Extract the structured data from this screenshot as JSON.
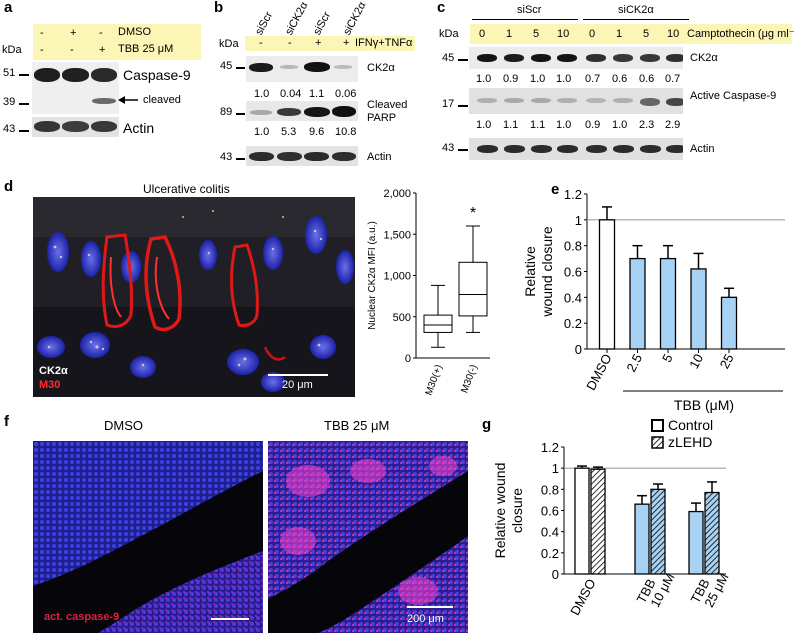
{
  "panels": {
    "a": {
      "letter": "a",
      "kda": "kDa",
      "conditions": [
        {
          "name": "DMSO",
          "values": [
            "-",
            "+",
            "-"
          ]
        },
        {
          "name": "TBB 25 μM",
          "values": [
            "-",
            "-",
            "+"
          ]
        }
      ],
      "markers": [
        "51",
        "39",
        "43"
      ],
      "blots": [
        "Caspase-9",
        "Actin"
      ],
      "cleaved_label": "cleaved"
    },
    "b": {
      "letter": "b",
      "kda": "kDa",
      "lanes": [
        "siScr",
        "siCK2α",
        "siScr",
        "siCK2α"
      ],
      "treatment_signs": [
        "-",
        "-",
        "+",
        "+"
      ],
      "treatment": "IFNγ+TNFα",
      "markers": [
        "45",
        "89",
        "43"
      ],
      "blots": [
        "CK2α",
        "Cleaved PARP",
        "Actin"
      ],
      "ck2_values": [
        "1.0",
        "0.04",
        "1.1",
        "0.06"
      ],
      "parp_values": [
        "1.0",
        "5.3",
        "9.6",
        "10.8"
      ]
    },
    "c": {
      "letter": "c",
      "kda": "kDa",
      "groups": [
        "siScr",
        "siCK2α"
      ],
      "doses": [
        "0",
        "1",
        "5",
        "10",
        "0",
        "1",
        "5",
        "10"
      ],
      "treatment": "Camptothecin (μg ml⁻¹)",
      "markers": [
        "45",
        "17",
        "43"
      ],
      "blots": [
        "CK2α",
        "Active Caspase-9",
        "Actin"
      ],
      "ck2_values": [
        "1.0",
        "0.9",
        "1.0",
        "1.0",
        "0.7",
        "0.6",
        "0.6",
        "0.7"
      ],
      "casp_values": [
        "1.0",
        "1.1",
        "1.1",
        "1.0",
        "0.9",
        "1.0",
        "2.3",
        "2.9"
      ]
    },
    "d": {
      "letter": "d",
      "title": "Ulcerative colitis",
      "stain1": "CK2α",
      "stain2": "M30",
      "scalebar": "20 μm"
    },
    "f": {
      "letter": "f",
      "left_title": "DMSO",
      "right_title": "TBB 25 μM",
      "stain": "act. caspase-9",
      "scalebar": "200 μm"
    },
    "e": {
      "letter": "e"
    },
    "g": {
      "letter": "g"
    }
  },
  "chart_data": [
    {
      "panel": "d",
      "type": "box",
      "ylabel": "Nuclear CK2α MFI (a.u.)",
      "ylim": [
        0,
        2000
      ],
      "yticks": [
        "0",
        "500",
        "1,000",
        "1,500",
        "2,000"
      ],
      "categories": [
        "M30(+)",
        "M30(-)"
      ],
      "boxes": [
        {
          "min": 130,
          "q1": 310,
          "median": 400,
          "q3": 520,
          "max": 880
        },
        {
          "min": 310,
          "q1": 510,
          "median": 770,
          "q3": 1160,
          "max": 1600
        }
      ],
      "annotations": [
        "*"
      ]
    },
    {
      "panel": "e",
      "type": "bar",
      "ylabel": "Relative wound closure",
      "ylim": [
        0,
        1.2
      ],
      "yticks": [
        "0",
        "0.2",
        "0.4",
        "0.6",
        "0.8",
        "1",
        "1.2"
      ],
      "categories": [
        "DMSO",
        "2.5",
        "5",
        "10",
        "25"
      ],
      "values": [
        1.0,
        0.7,
        0.7,
        0.62,
        0.4
      ],
      "errors": [
        0.1,
        0.1,
        0.1,
        0.12,
        0.07
      ],
      "colors": [
        "#ffffff",
        "#a8d2f4",
        "#a8d2f4",
        "#a8d2f4",
        "#a8d2f4"
      ],
      "group_label": "TBB (μM)",
      "reference_line": 1.0
    },
    {
      "panel": "g",
      "type": "bar",
      "ylabel": "Relative wound closure",
      "ylim": [
        0,
        1.2
      ],
      "yticks": [
        "0",
        "0.2",
        "0.4",
        "0.6",
        "0.8",
        "1",
        "1.2"
      ],
      "categories": [
        "DMSO",
        "TBB 10 μM",
        "TBB 25 μM"
      ],
      "series": [
        {
          "name": "Control",
          "values": [
            1.0,
            0.66,
            0.59
          ],
          "errors": [
            0.02,
            0.08,
            0.08
          ]
        },
        {
          "name": "zLEHD",
          "values": [
            0.99,
            0.8,
            0.77
          ],
          "errors": [
            0.02,
            0.05,
            0.1
          ]
        }
      ],
      "legend": "top-right",
      "reference_line": 1.0
    }
  ]
}
